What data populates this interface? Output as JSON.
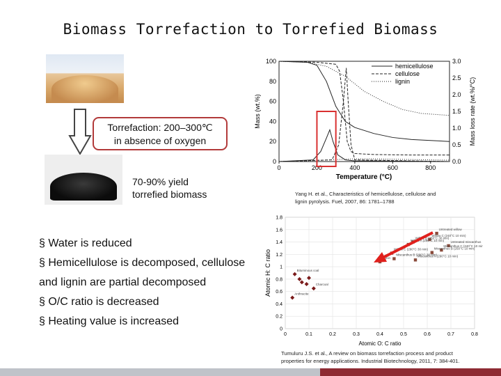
{
  "title": "Biomass Torrefaction to Torrefied Biomass",
  "process": {
    "line1": "Torrefaction: 200–300℃",
    "line2": "in absence of oxygen"
  },
  "yield": {
    "line1": "70-90% yield",
    "line2": "torrefied biomass"
  },
  "bullets": [
    "§ Water is reduced",
    "§ Hemicellulose is decomposed, cellulose",
    "and lignin are partial decomposed",
    "§ O/C ratio is decreased",
    "§ Heating value is increased"
  ],
  "colors": {
    "accent": "#b23a3a",
    "footer_red": "#8e2b33",
    "footer_grey": "#bfc3c9"
  },
  "icons": [
    "down-arrow-icon",
    "highlight-arrow-icon"
  ],
  "chart_data": [
    {
      "type": "line",
      "title": "",
      "xlabel": "Temperature (°C)",
      "ylabel": "Mass (wt.%)",
      "y2label": "Mass loss rate (wt.%/°C)",
      "xlim": [
        0,
        900
      ],
      "ylim": [
        0,
        100
      ],
      "y2lim": [
        0,
        3.0
      ],
      "x_ticks": [
        "0",
        "200",
        "400",
        "600",
        "800"
      ],
      "y_ticks": [
        "0",
        "20",
        "40",
        "60",
        "80",
        "100"
      ],
      "y2_ticks": [
        "0.0",
        "0.5",
        "1.0",
        "1.5",
        "2.0",
        "2.5",
        "3.0"
      ],
      "legend": [
        "hemicellulose",
        "cellulose",
        "lignin"
      ],
      "legend_position": "top-right",
      "highlight_box_x": [
        200,
        300
      ],
      "series": [
        {
          "name": "hemicellulose",
          "axis": "mass",
          "x": [
            0,
            150,
            200,
            250,
            300,
            350,
            400,
            500,
            600,
            700,
            900
          ],
          "y": [
            100,
            99,
            96,
            80,
            55,
            40,
            34,
            28,
            24,
            22,
            20
          ]
        },
        {
          "name": "cellulose",
          "axis": "mass",
          "x": [
            0,
            200,
            300,
            320,
            340,
            360,
            380,
            400,
            500,
            700,
            900
          ],
          "y": [
            100,
            99,
            97,
            90,
            60,
            20,
            10,
            8,
            7,
            6.5,
            6.5
          ]
        },
        {
          "name": "lignin",
          "axis": "mass",
          "x": [
            0,
            150,
            250,
            350,
            450,
            550,
            650,
            750,
            900
          ],
          "y": [
            100,
            99,
            95,
            85,
            70,
            60,
            52,
            48,
            46
          ]
        },
        {
          "name": "hemicellulose",
          "axis": "rate",
          "x": [
            0,
            180,
            220,
            250,
            268,
            285,
            310,
            350,
            400,
            900
          ],
          "y": [
            0,
            0.05,
            0.3,
            0.7,
            0.95,
            0.6,
            0.2,
            0.05,
            0.02,
            0
          ]
        },
        {
          "name": "cellulose",
          "axis": "rate",
          "x": [
            0,
            280,
            315,
            340,
            355,
            365,
            380,
            400,
            900
          ],
          "y": [
            0,
            0.05,
            0.5,
            1.8,
            2.8,
            1.8,
            0.5,
            0.05,
            0
          ]
        },
        {
          "name": "lignin",
          "axis": "rate",
          "x": [
            0,
            200,
            300,
            400,
            500,
            600,
            700,
            800,
            900
          ],
          "y": [
            0,
            0.03,
            0.06,
            0.08,
            0.08,
            0.07,
            0.06,
            0.05,
            0.04
          ]
        }
      ]
    },
    {
      "type": "scatter",
      "title": "",
      "xlabel": "Atomic O: C ratio",
      "ylabel": "Atomic H: C ratio",
      "xlim": [
        0,
        0.8
      ],
      "ylim": [
        0,
        1.8
      ],
      "x_ticks": [
        "0",
        "0.1",
        "0.2",
        "0.3",
        "0.4",
        "0.5",
        "0.6",
        "0.7",
        "0.8"
      ],
      "y_ticks": [
        "0",
        "0.2",
        "0.4",
        "0.6",
        "0.8",
        "1",
        "1.2",
        "1.4",
        "1.6",
        "1.8"
      ],
      "points": [
        {
          "x": 0.64,
          "y": 1.54,
          "label": "Untreated willow"
        },
        {
          "x": 0.61,
          "y": 1.44,
          "label": "Willow C (240°C 10 min)"
        },
        {
          "x": 0.54,
          "y": 1.4,
          "label": "Willow B (250°C 30 min)"
        },
        {
          "x": 0.52,
          "y": 1.36,
          "label": "Willow A (290°C 10 min)"
        },
        {
          "x": 0.69,
          "y": 1.34,
          "label": "Untreated miscanthus"
        },
        {
          "x": 0.66,
          "y": 1.27,
          "label": "Miscanthus C (240°C 10 min)"
        },
        {
          "x": 0.62,
          "y": 1.23,
          "label": "Miscanthus B (250°C 10 min)"
        },
        {
          "x": 0.45,
          "y": 1.22,
          "label": "Willow C (290°C 30 min)"
        },
        {
          "x": 0.46,
          "y": 1.13,
          "label": "Miscanthus B (290°C 30 min)"
        },
        {
          "x": 0.55,
          "y": 1.11,
          "label": "Miscanthus A (290°C 10 min)"
        },
        {
          "x": 0.4,
          "y": 1.08,
          "label": "Lignin"
        },
        {
          "x": 0.04,
          "y": 0.88,
          "label": "Bituminous coal"
        },
        {
          "x": 0.06,
          "y": 0.8,
          "label": ""
        },
        {
          "x": 0.07,
          "y": 0.75,
          "label": ""
        },
        {
          "x": 0.1,
          "y": 0.82,
          "label": ""
        },
        {
          "x": 0.09,
          "y": 0.72,
          "label": ""
        },
        {
          "x": 0.12,
          "y": 0.65,
          "label": "Charcoal"
        },
        {
          "x": 0.03,
          "y": 0.5,
          "label": "Anthracite"
        }
      ]
    }
  ],
  "citations": {
    "c1_line1": "Yang H. et al., Characteristics of hemicellulose, cellulose and",
    "c1_line2": "lignin pyrolysis. Fuel, 2007, 86: 1781–1788",
    "c2_line1": "Tumuluru J.S. et al., A review on biomass torrefaction process and product",
    "c2_line2": "properties for energy applications. Industrial Biotechnology, 2011, 7: 384-401."
  }
}
